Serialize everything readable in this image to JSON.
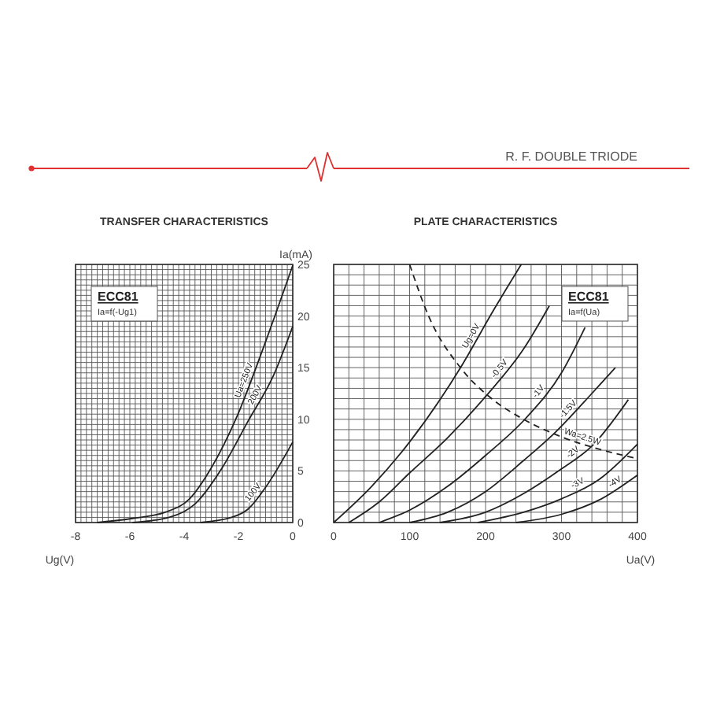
{
  "chart_data": [
    {
      "type": "line",
      "title": "TRANSFER CHARACTERISTICS",
      "xlabel": "Ug(V)",
      "ylabel": "Ia(mA)",
      "annotations": [
        "ECC81",
        "Ia=f(-Ug1)"
      ],
      "xlim": [
        -8,
        0
      ],
      "ylim": [
        0,
        25
      ],
      "grid": true,
      "marker": "none",
      "line_style": "solid",
      "tick_labels": "xy",
      "xticks": [
        -8,
        {
          "value": -7.8,
          "label": null
        },
        {
          "value": -7.6,
          "label": null
        },
        {
          "value": -7.4,
          "label": null
        },
        {
          "value": -7.2,
          "label": null
        },
        {
          "value": -7,
          "label": null
        },
        {
          "value": -6.8,
          "label": null
        },
        {
          "value": -6.6,
          "label": null
        },
        {
          "value": -6.4,
          "label": null
        },
        {
          "value": -6.2,
          "label": null
        },
        -6,
        {
          "value": -5.8,
          "label": null
        },
        {
          "value": -5.6,
          "label": null
        },
        {
          "value": -5.4,
          "label": null
        },
        {
          "value": -5.2,
          "label": null
        },
        {
          "value": -5,
          "label": null
        },
        {
          "value": -4.8,
          "label": null
        },
        {
          "value": -4.6,
          "label": null
        },
        {
          "value": -4.4,
          "label": null
        },
        {
          "value": -4.2,
          "label": null
        },
        -4,
        {
          "value": -3.8,
          "label": null
        },
        {
          "value": -3.6,
          "label": null
        },
        {
          "value": -3.4,
          "label": null
        },
        {
          "value": -3.2,
          "label": null
        },
        {
          "value": -3,
          "label": null
        },
        {
          "value": -2.8,
          "label": null
        },
        {
          "value": -2.6,
          "label": null
        },
        {
          "value": -2.4,
          "label": null
        },
        {
          "value": -2.2,
          "label": null
        },
        -2,
        {
          "value": -1.8,
          "label": null
        },
        {
          "value": -1.6,
          "label": null
        },
        {
          "value": -1.4,
          "label": null
        },
        {
          "value": -1.2,
          "label": null
        },
        {
          "value": -1,
          "label": null
        },
        {
          "value": -0.8,
          "label": null
        },
        {
          "value": -0.6,
          "label": null
        },
        {
          "value": -0.4,
          "label": null
        },
        {
          "value": -0.2,
          "label": null
        },
        0
      ],
      "yticks": [
        0,
        {
          "value": 0.5,
          "label": null
        },
        {
          "value": 1,
          "label": null
        },
        {
          "value": 1.5,
          "label": null
        },
        {
          "value": 2,
          "label": null
        },
        {
          "value": 2.5,
          "label": null
        },
        {
          "value": 3,
          "label": null
        },
        {
          "value": 3.5,
          "label": null
        },
        {
          "value": 4,
          "label": null
        },
        {
          "value": 4.5,
          "label": null
        },
        5,
        {
          "value": 5.5,
          "label": null
        },
        {
          "value": 6,
          "label": null
        },
        {
          "value": 6.5,
          "label": null
        },
        {
          "value": 7,
          "label": null
        },
        {
          "value": 7.5,
          "label": null
        },
        {
          "value": 8,
          "label": null
        },
        {
          "value": 8.5,
          "label": null
        },
        {
          "value": 9,
          "label": null
        },
        {
          "value": 9.5,
          "label": null
        },
        10,
        {
          "value": 10.5,
          "label": null
        },
        {
          "value": 11,
          "label": null
        },
        {
          "value": 11.5,
          "label": null
        },
        {
          "value": 12,
          "label": null
        },
        {
          "value": 12.5,
          "label": null
        },
        {
          "value": 13,
          "label": null
        },
        {
          "value": 13.5,
          "label": null
        },
        {
          "value": 14,
          "label": null
        },
        {
          "value": 14.5,
          "label": null
        },
        15,
        {
          "value": 15.5,
          "label": null
        },
        {
          "value": 16,
          "label": null
        },
        {
          "value": 16.5,
          "label": null
        },
        {
          "value": 17,
          "label": null
        },
        {
          "value": 17.5,
          "label": null
        },
        {
          "value": 18,
          "label": null
        },
        {
          "value": 18.5,
          "label": null
        },
        {
          "value": 19,
          "label": null
        },
        {
          "value": 19.5,
          "label": null
        },
        20,
        {
          "value": 20.5,
          "label": null
        },
        {
          "value": 21,
          "label": null
        },
        {
          "value": 21.5,
          "label": null
        },
        {
          "value": 22,
          "label": null
        },
        {
          "value": 22.5,
          "label": null
        },
        {
          "value": 23,
          "label": null
        },
        {
          "value": 23.5,
          "label": null
        },
        {
          "value": 24,
          "label": null
        },
        {
          "value": 24.5,
          "label": null
        },
        25
      ],
      "series": [
        {
          "name": "Ua=250V",
          "color": "#222222",
          "x": [
            -7.2,
            -5.9,
            -4.7,
            -3.8,
            -3,
            -2.05,
            -1.1,
            0
          ],
          "values": [
            0,
            0.4,
            1,
            2.3,
            5.3,
            10.3,
            16.8,
            24.9
          ]
        },
        {
          "name": "200V",
          "color": "#222222",
          "x": [
            -5.9,
            -4.55,
            -3.6,
            -2.6,
            -1.65,
            -0.7,
            0
          ],
          "values": [
            0,
            0.5,
            1.8,
            5.3,
            9.8,
            14.3,
            19
          ]
        },
        {
          "name": "100V",
          "color": "#222222",
          "x": [
            -3.4,
            -2.25,
            -1.65,
            -0.9,
            0
          ],
          "values": [
            0,
            0.5,
            1.3,
            3.8,
            7.8
          ]
        }
      ]
    },
    {
      "type": "line",
      "title": "PLATE CHARACTERISTICS",
      "xlabel": "Ua(V)",
      "annotations": [
        "ECC81",
        "Ia=f(Ua)",
        "R. F. DOUBLE TRIODE"
      ],
      "xlim": [
        0,
        400
      ],
      "ylim": [
        0,
        25
      ],
      "grid": true,
      "marker": "none",
      "line_style": "solid",
      "tick_labels": "x",
      "xticks": [
        0,
        {
          "value": 20,
          "label": null
        },
        {
          "value": 40,
          "label": null
        },
        {
          "value": 60,
          "label": null
        },
        {
          "value": 80,
          "label": null
        },
        100,
        {
          "value": 120,
          "label": null
        },
        {
          "value": 140,
          "label": null
        },
        {
          "value": 160,
          "label": null
        },
        {
          "value": 180,
          "label": null
        },
        200,
        {
          "value": 220,
          "label": null
        },
        {
          "value": 240,
          "label": null
        },
        {
          "value": 260,
          "label": null
        },
        {
          "value": 280,
          "label": null
        },
        300,
        {
          "value": 320,
          "label": null
        },
        {
          "value": 340,
          "label": null
        },
        {
          "value": 360,
          "label": null
        },
        {
          "value": 380,
          "label": null
        },
        400
      ],
      "yticks": [
        0,
        1,
        2,
        3,
        4,
        5,
        6,
        7,
        8,
        9,
        10,
        11,
        12,
        13,
        14,
        15,
        16,
        17,
        18,
        19,
        20,
        21,
        22,
        23,
        24,
        25
      ],
      "series": [
        {
          "name": "Ug=0V",
          "color": "#222222",
          "x": [
            0,
            50,
            100,
            167,
            210,
            247
          ],
          "values": [
            0,
            3.5,
            7.8,
            15,
            20.5,
            25
          ]
        },
        {
          "name": "-0.5V",
          "color": "#222222",
          "x": [
            20,
            60,
            100,
            150,
            200,
            250,
            284
          ],
          "values": [
            0,
            2,
            4.8,
            8.2,
            12.2,
            16.8,
            21
          ]
        },
        {
          "name": "-1V",
          "color": "#222222",
          "x": [
            60,
            100,
            150,
            200,
            253,
            300,
            331
          ],
          "values": [
            0,
            1.2,
            3.5,
            6.5,
            10.1,
            14.5,
            18.9
          ]
        },
        {
          "name": "-1.5V",
          "color": "#222222",
          "x": [
            100,
            150,
            200,
            250,
            290,
            340,
            371
          ],
          "values": [
            0,
            1,
            3,
            6,
            8.6,
            12.5,
            15
          ]
        },
        {
          "name": "-2V",
          "color": "#222222",
          "x": [
            140,
            200,
            250,
            300,
            340,
            388
          ],
          "values": [
            0,
            1,
            2.8,
            5.2,
            7.4,
            11.9
          ]
        },
        {
          "name": "-3V",
          "color": "#222222",
          "x": [
            190,
            250,
            300,
            350,
            400
          ],
          "values": [
            0,
            1,
            2.3,
            4.2,
            7.6
          ]
        },
        {
          "name": "-4V",
          "color": "#222222",
          "x": [
            240,
            300,
            350,
            400
          ],
          "values": [
            0,
            0.8,
            2.2,
            4.6
          ]
        },
        {
          "name": "Wa=2.5W",
          "color": "#222222",
          "line_style": "dashed",
          "x": [
            100,
            125,
            167,
            208,
            250,
            300,
            350,
            400
          ],
          "values": [
            25,
            20,
            15,
            12,
            10,
            8.3,
            7.1,
            6.2
          ]
        }
      ]
    }
  ]
}
